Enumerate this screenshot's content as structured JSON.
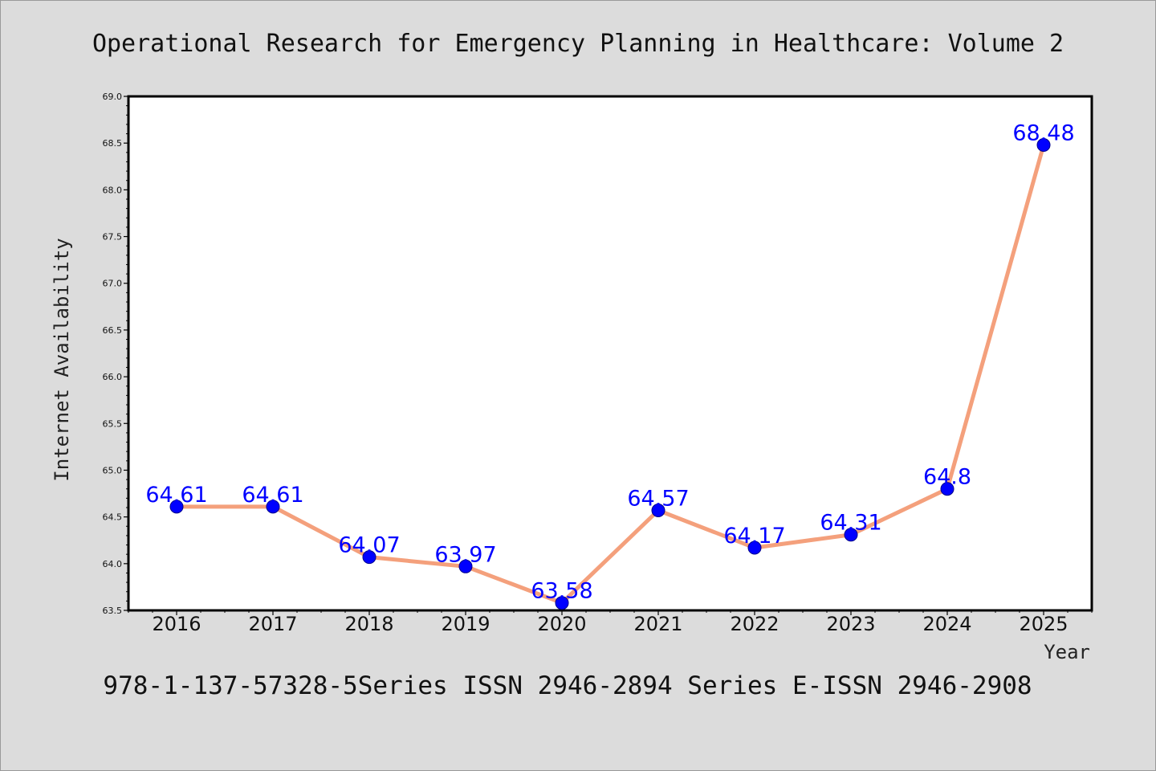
{
  "title": "Operational Research for Emergency Planning in Healthcare: Volume 2",
  "footer": "978-1-137-57328-5Series ISSN 2946-2894 Series E-ISSN 2946-2908",
  "colors": {
    "background": "#dcdcdc",
    "plot_background": "#ffffff",
    "line": "#f4a07c",
    "marker": "#0000ff",
    "data_label": "#0000ff"
  },
  "chart_data": {
    "type": "line",
    "xlabel": "Year",
    "ylabel": "Internet Availability",
    "categories": [
      "2016",
      "2017",
      "2018",
      "2019",
      "2020",
      "2021",
      "2022",
      "2023",
      "2024",
      "2025"
    ],
    "series": [
      {
        "values": [
          64.61,
          64.61,
          64.07,
          63.97,
          63.58,
          64.57,
          64.17,
          64.31,
          64.8,
          68.48
        ],
        "labels": [
          "64.61",
          "64.61",
          "64.07",
          "63.97",
          "63.58",
          "64.57",
          "64.17",
          "64.31",
          "64.8",
          "68.48"
        ]
      }
    ],
    "ylim": [
      63.5,
      69.0
    ],
    "yticks": [
      "63.5",
      "64.0",
      "64.5",
      "65.0",
      "65.5",
      "66.0",
      "66.5",
      "67.0",
      "67.5",
      "68.0",
      "68.5",
      "69.0"
    ],
    "grid": false,
    "legend": "none"
  }
}
